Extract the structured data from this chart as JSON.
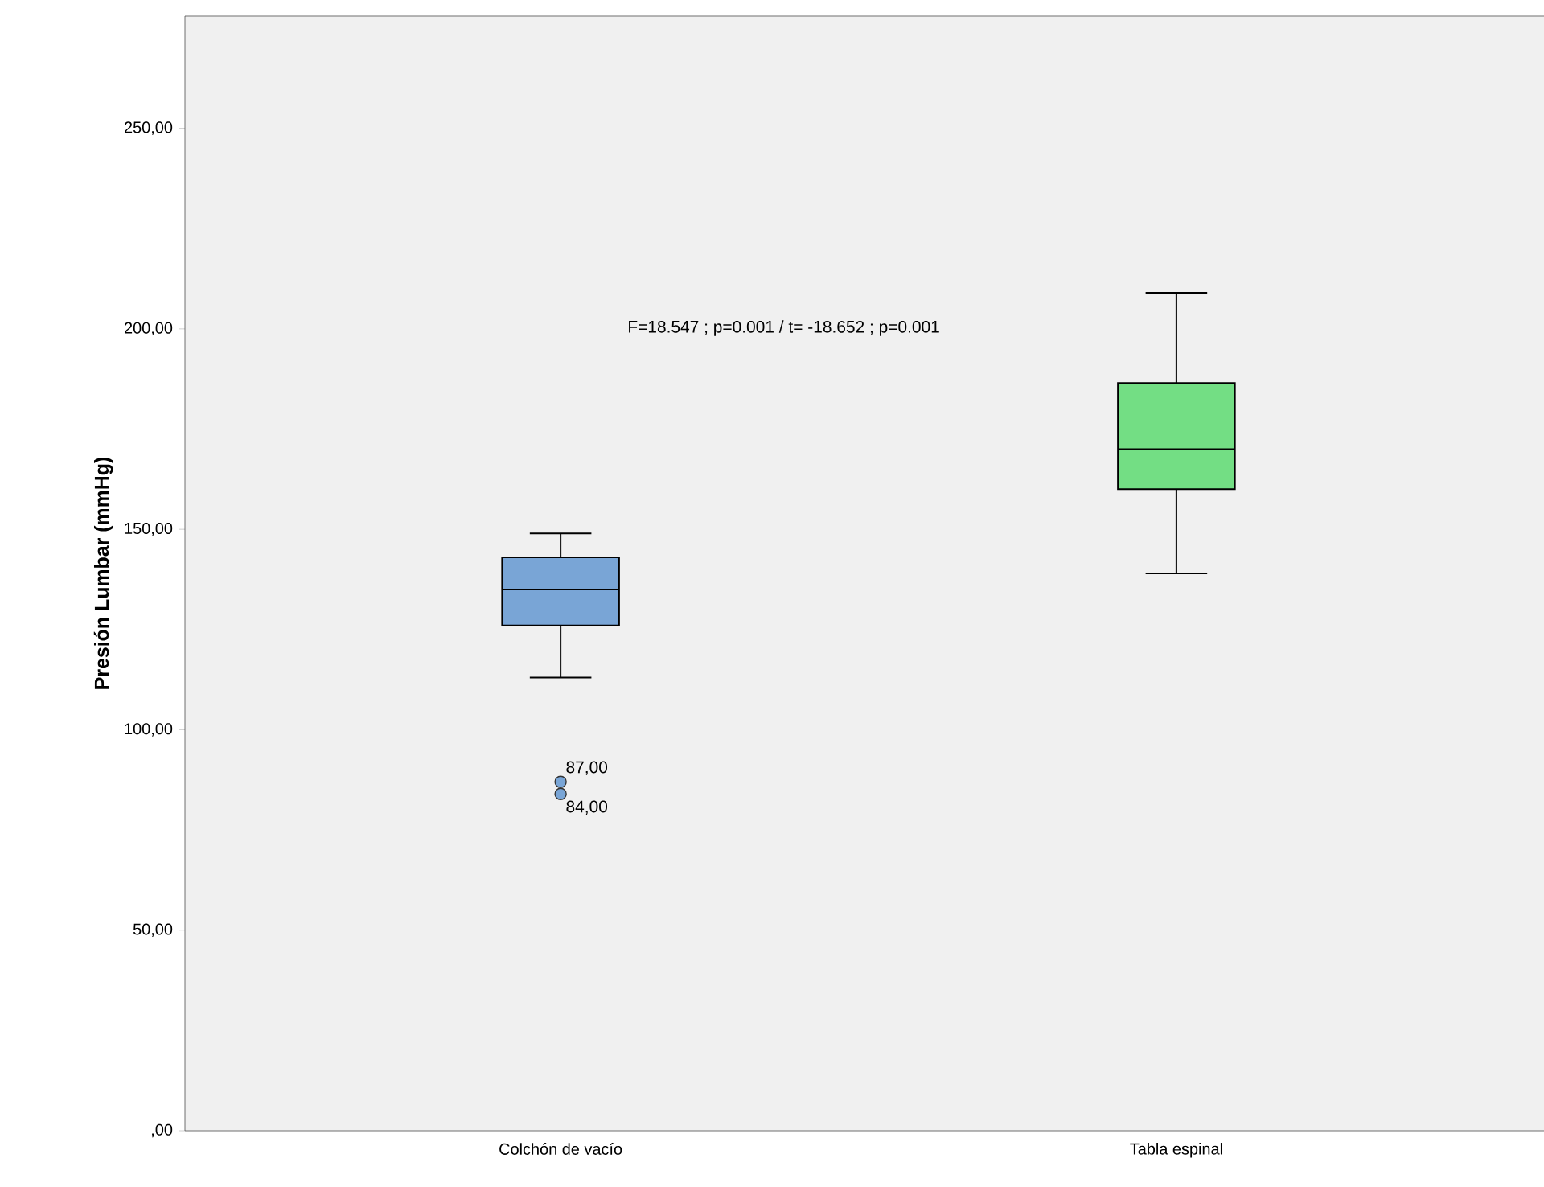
{
  "chart_data": {
    "type": "box",
    "ylabel": "Presión Lumbar (mmHg)",
    "categories": [
      "Colchón de vacío",
      "Tabla espinal"
    ],
    "boxes": [
      {
        "low": 113,
        "q1": 126,
        "median": 135,
        "q3": 143,
        "high": 149,
        "outliers": [
          87,
          84
        ]
      },
      {
        "low": 139,
        "q1": 160,
        "median": 170,
        "q3": 186.5,
        "high": 209
      }
    ],
    "colors": [
      "#79a5d6",
      "#73de84"
    ],
    "ylim": [
      0,
      278
    ],
    "yticks": [
      {
        "value": 0,
        "label": ",00"
      },
      {
        "value": 50,
        "label": "50,00"
      },
      {
        "value": 100,
        "label": "100,00"
      },
      {
        "value": 150,
        "label": "150,00"
      },
      {
        "value": 200,
        "label": "200,00"
      },
      {
        "value": 250,
        "label": "250,00"
      }
    ],
    "annotations": [
      "F=18.547 ; p=0.001 / t= -18.652 ; p=0.001",
      "87,00",
      "84,00"
    ]
  }
}
